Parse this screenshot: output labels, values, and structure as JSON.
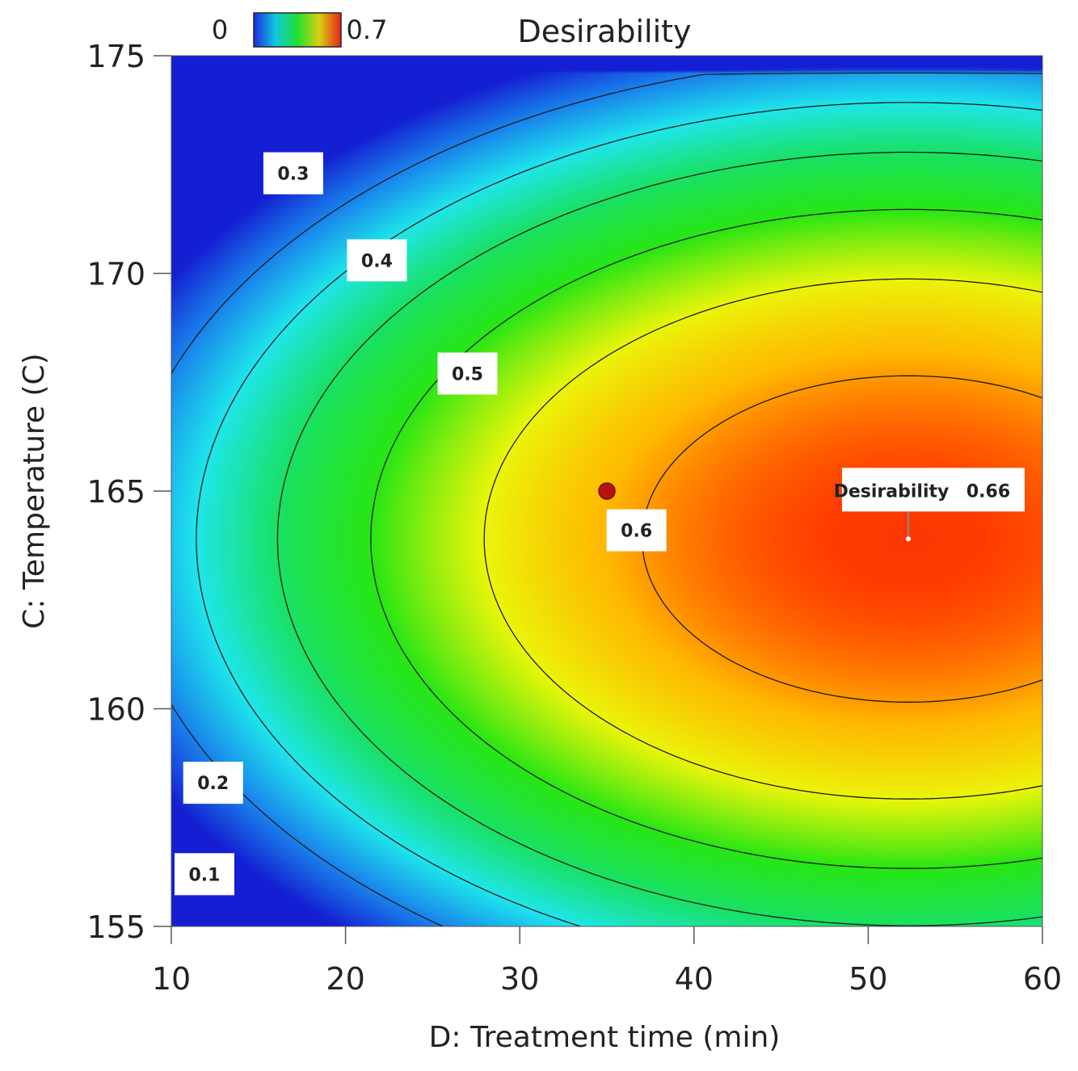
{
  "chart_data": {
    "type": "contour",
    "title": "Desirability",
    "xlabel": "D: Treatment time (min)",
    "ylabel": "C: Temperature (C)",
    "xlim": [
      10,
      60
    ],
    "ylim": [
      155,
      175
    ],
    "xticks": [
      "10",
      "20",
      "30",
      "40",
      "50",
      "60"
    ],
    "yticks": [
      "155",
      "160",
      "165",
      "170",
      "175"
    ],
    "xtick_values": [
      10,
      20,
      30,
      40,
      50,
      60
    ],
    "ytick_values": [
      155,
      160,
      165,
      170,
      175
    ],
    "colorbar": {
      "min_label": "0",
      "max_label": "0.7",
      "min": 0,
      "max": 0.7,
      "min_color": "#1a2ee0",
      "max_color": "#e8221c"
    },
    "contour_levels": [
      {
        "level": 0.1,
        "label": "0.1",
        "label_x": 11.9,
        "label_y": 156.2
      },
      {
        "level": 0.2,
        "label": "0.2",
        "label_x": 12.4,
        "label_y": 158.3
      },
      {
        "level": 0.3,
        "label": "0.3",
        "label_x": 17.0,
        "label_y": 172.3
      },
      {
        "level": 0.4,
        "label": "0.4",
        "label_x": 21.8,
        "label_y": 170.3
      },
      {
        "level": 0.5,
        "label": "0.5",
        "label_x": 27.0,
        "label_y": 167.7
      },
      {
        "level": 0.6,
        "label": "0.6",
        "label_x": 36.7,
        "label_y": 164.1
      }
    ],
    "design_point": {
      "x": 35,
      "y": 165,
      "color": "#b8120f"
    },
    "optimum": {
      "x": 52.3,
      "y": 163.9,
      "label": "Desirability",
      "value": "0.66"
    }
  }
}
